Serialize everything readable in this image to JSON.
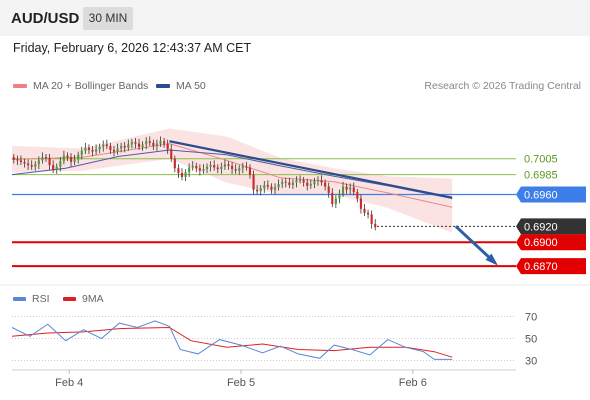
{
  "header": {
    "symbol": "AUD/USD",
    "timeframe": "30 MIN"
  },
  "datetime": "Friday, February 6, 2026 12:43:37 AM CET",
  "legend": {
    "bb_label": "MA 20 + Bollinger Bands",
    "ma50_label": "MA 50",
    "copyright": "Research © 2026 Trading Central"
  },
  "colors": {
    "bb": "#f08080",
    "ma50": "#2c4d8c",
    "rsi": "#5b86d6",
    "rsi_ma": "#e02020",
    "resistance": "#8dbd4b",
    "support": "#e00000",
    "pivot": "#3d7ee8",
    "current": "#333333"
  },
  "rsi_legend": {
    "rsi_label": "RSI",
    "ma_label": "9MA"
  },
  "chart_data": {
    "type": "candlestick",
    "title": "AUD/USD",
    "price_axis": {
      "min": 0.6855,
      "max": 0.706
    },
    "price_levels": [
      {
        "price": 0.7005,
        "label": "0.7005",
        "kind": "resistance"
      },
      {
        "price": 0.6985,
        "label": "0.6985",
        "kind": "resistance"
      },
      {
        "price": 0.696,
        "label": "0.6960",
        "kind": "pivot"
      },
      {
        "price": 0.692,
        "label": "0.6920",
        "kind": "current"
      },
      {
        "price": 0.69,
        "label": "0.6900",
        "kind": "support"
      },
      {
        "price": 0.687,
        "label": "0.6870",
        "kind": "support"
      }
    ],
    "x_labels": [
      "Feb 4",
      "Feb 5",
      "Feb 6"
    ],
    "x_label_index": [
      16,
      64,
      112
    ],
    "closes": [
      0.7004,
      0.7003,
      0.7001,
      0.6999,
      0.6997,
      0.6995,
      0.6998,
      0.7003,
      0.7007,
      0.7006,
      0.6997,
      0.6991,
      0.6995,
      0.7002,
      0.7009,
      0.7007,
      0.7001,
      0.7004,
      0.701,
      0.7015,
      0.7019,
      0.7016,
      0.7014,
      0.7017,
      0.702,
      0.7023,
      0.7021,
      0.7016,
      0.7014,
      0.7018,
      0.7021,
      0.7019,
      0.7023,
      0.7026,
      0.7024,
      0.702,
      0.7023,
      0.7027,
      0.7025,
      0.7021,
      0.7024,
      0.7027,
      0.7024,
      0.7017,
      0.7005,
      0.6993,
      0.6987,
      0.6982,
      0.6988,
      0.6994,
      0.6996,
      0.6993,
      0.699,
      0.6992,
      0.6995,
      0.6997,
      0.6994,
      0.6992,
      0.6995,
      0.6998,
      0.6996,
      0.6992,
      0.699,
      0.6993,
      0.6995,
      0.6994,
      0.6985,
      0.6966,
      0.6964,
      0.6968,
      0.6972,
      0.697,
      0.6966,
      0.6969,
      0.6973,
      0.6976,
      0.6975,
      0.6972,
      0.6975,
      0.6978,
      0.6978,
      0.6975,
      0.6971,
      0.6973,
      0.6977,
      0.6978,
      0.6975,
      0.697,
      0.6962,
      0.6948,
      0.6955,
      0.6961,
      0.697,
      0.6966,
      0.6969,
      0.6963,
      0.6955,
      0.6942,
      0.6937,
      0.6935,
      0.6923,
      0.6919
    ],
    "ma20_points": [
      [
        0,
        0.7004
      ],
      [
        20,
        0.7007
      ],
      [
        44,
        0.7024
      ],
      [
        60,
        0.7003
      ],
      [
        75,
        0.6981
      ],
      [
        90,
        0.6976
      ],
      [
        105,
        0.6962
      ],
      [
        123,
        0.6944
      ]
    ],
    "bb_band": {
      "upper": [
        [
          0,
          0.7021
        ],
        [
          20,
          0.7018
        ],
        [
          44,
          0.7043
        ],
        [
          60,
          0.7033
        ],
        [
          75,
          0.7006
        ],
        [
          90,
          0.6993
        ],
        [
          105,
          0.6983
        ],
        [
          123,
          0.698
        ]
      ],
      "lower": [
        [
          0,
          0.6988
        ],
        [
          20,
          0.699
        ],
        [
          44,
          0.7005
        ],
        [
          60,
          0.6975
        ],
        [
          75,
          0.696
        ],
        [
          90,
          0.696
        ],
        [
          105,
          0.6943
        ],
        [
          123,
          0.6912
        ]
      ]
    },
    "ma50_points": [
      [
        0,
        0.6985
      ],
      [
        15,
        0.6993
      ],
      [
        30,
        0.7008
      ],
      [
        44,
        0.7016
      ],
      [
        60,
        0.701
      ],
      [
        75,
        0.6996
      ],
      [
        90,
        0.6983
      ],
      [
        105,
        0.6971
      ],
      [
        123,
        0.6955
      ]
    ],
    "trend_line": [
      [
        44,
        0.7027
      ],
      [
        123,
        0.6956
      ]
    ],
    "rsi_axis": {
      "min": 25,
      "max": 75,
      "ticks": [
        70,
        50,
        30
      ]
    },
    "rsi_points": [
      [
        0,
        60
      ],
      [
        5,
        52
      ],
      [
        10,
        63
      ],
      [
        15,
        48
      ],
      [
        20,
        58
      ],
      [
        25,
        50
      ],
      [
        30,
        64
      ],
      [
        35,
        60
      ],
      [
        40,
        66
      ],
      [
        44,
        61
      ],
      [
        47,
        40
      ],
      [
        52,
        36
      ],
      [
        58,
        49
      ],
      [
        64,
        44
      ],
      [
        70,
        37
      ],
      [
        75,
        43
      ],
      [
        80,
        36
      ],
      [
        86,
        32
      ],
      [
        90,
        44
      ],
      [
        95,
        40
      ],
      [
        100,
        35
      ],
      [
        105,
        49
      ],
      [
        110,
        42
      ],
      [
        115,
        38
      ],
      [
        118,
        31
      ],
      [
        123,
        31
      ]
    ],
    "rsi_ma_points": [
      [
        0,
        52
      ],
      [
        10,
        55
      ],
      [
        20,
        56
      ],
      [
        30,
        59
      ],
      [
        44,
        60
      ],
      [
        50,
        48
      ],
      [
        60,
        42
      ],
      [
        70,
        45
      ],
      [
        80,
        40
      ],
      [
        90,
        39
      ],
      [
        100,
        42
      ],
      [
        110,
        42
      ],
      [
        118,
        38
      ],
      [
        123,
        33
      ]
    ],
    "forecast_arrow": {
      "from": [
        124,
        0.692
      ],
      "to": [
        135,
        0.6874
      ]
    }
  }
}
